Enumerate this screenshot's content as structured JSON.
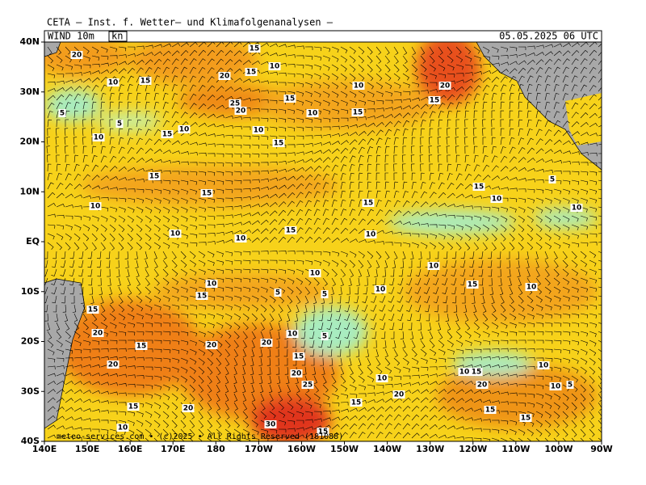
{
  "header": {
    "title": "CETA – Inst. f. Wetter– und Klimafolgenanalysen –",
    "field": "WIND 10m",
    "unit": "kn",
    "datetime": "05.05.2025 06 UTC"
  },
  "map": {
    "lat_labels": [
      "40N",
      "30N",
      "20N",
      "10N",
      "EQ",
      "10S",
      "20S",
      "30S",
      "40S"
    ],
    "lon_labels": [
      "140E",
      "150E",
      "160E",
      "170E",
      "180",
      "170W",
      "160W",
      "150W",
      "140W",
      "130W",
      "120W",
      "110W",
      "100W",
      "90W"
    ],
    "speed_labels": [
      "20",
      "15",
      "10",
      "20",
      "15",
      "10",
      "15",
      "20",
      "10",
      "15",
      "25",
      "20",
      "10",
      "15",
      "15",
      "5",
      "5",
      "10",
      "10",
      "15",
      "10",
      "15",
      "15",
      "15",
      "15",
      "10",
      "5",
      "10",
      "15",
      "10",
      "15",
      "10",
      "10",
      "10",
      "10",
      "10",
      "10",
      "15",
      "10",
      "15",
      "5",
      "10",
      "5",
      "15",
      "20",
      "15",
      "20",
      "20",
      "10",
      "5",
      "15",
      "20",
      "20",
      "10",
      "25",
      "10",
      "15",
      "10",
      "20",
      "10",
      "5",
      "20",
      "15",
      "15",
      "20",
      "15",
      "15",
      "10",
      "30",
      "15"
    ],
    "footer": "meteo-services.com • (c)2025 • All Rights Reserved (181088)"
  }
}
